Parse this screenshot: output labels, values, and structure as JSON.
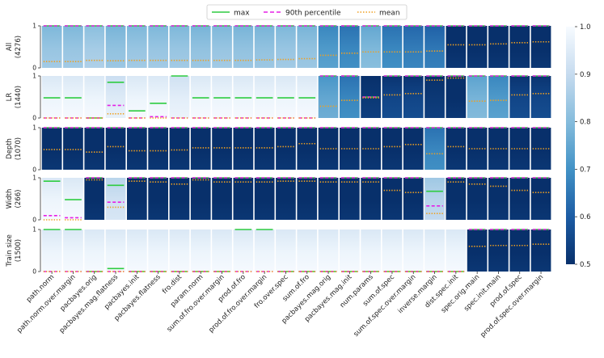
{
  "chart_data": {
    "type": "heatmap",
    "title": "",
    "legend": [
      {
        "key": "max",
        "label": "max",
        "color": "#2ecc40",
        "style": "solid"
      },
      {
        "key": "p90",
        "label": "90th percentile",
        "color": "#e520e5",
        "style": "dashed"
      },
      {
        "key": "mean",
        "label": "mean",
        "color": "#f0a020",
        "style": "dotted"
      }
    ],
    "colorbar": {
      "min": 0.5,
      "max": 1.0,
      "ticks": [
        "0.5",
        "0.6",
        "0.7",
        "0.8",
        "0.9",
        "1.0"
      ]
    },
    "ytick_labels": [
      "0",
      "1"
    ],
    "measures": [
      "path.norm",
      "path.norm.over.margin",
      "pacbayes.orig",
      "pacbayes.mag.flatness",
      "pacbayes.init",
      "pacbayes.flatness",
      "fro.dist",
      "param.norm",
      "sum.of.fro.over.margin",
      "prod.of.fro",
      "prod.of.fro.over.margin",
      "fro.over.spec",
      "sum.of.fro",
      "pacbayes.mag.orig",
      "pacbayes.mag.init",
      "num.params",
      "sum.of.spec",
      "sum.of.spec.over.margin",
      "inverse.margin",
      "dist.spec.init",
      "spec.orig.main",
      "spec.init.main",
      "prod.of.spec",
      "prod.of.spec.over.margin"
    ],
    "rows": [
      {
        "name": "All",
        "count": "(4276)",
        "colors": [
          0.83,
          0.83,
          0.85,
          0.82,
          0.83,
          0.83,
          0.83,
          0.82,
          0.83,
          0.82,
          0.82,
          0.83,
          0.82,
          0.72,
          0.68,
          0.79,
          0.68,
          0.66,
          0.65,
          0.5,
          0.5,
          0.5,
          0.5,
          0.5
        ],
        "means": [
          0.15,
          0.15,
          0.18,
          0.17,
          0.18,
          0.18,
          0.18,
          0.18,
          0.18,
          0.18,
          0.19,
          0.2,
          0.22,
          0.3,
          0.35,
          0.38,
          0.38,
          0.38,
          0.4,
          0.55,
          0.55,
          0.57,
          0.6,
          0.62
        ],
        "p90": [
          1,
          1,
          1,
          1,
          1,
          1,
          1,
          1,
          1,
          1,
          1,
          1,
          1,
          1,
          1,
          1,
          1,
          1,
          1,
          1,
          1,
          1,
          1,
          1
        ],
        "max": [
          1,
          1,
          1,
          1,
          1,
          1,
          1,
          1,
          1,
          1,
          1,
          1,
          1,
          1,
          1,
          1,
          1,
          1,
          1,
          1,
          1,
          1,
          1,
          1
        ]
      },
      {
        "name": "LR",
        "count": "(1440)",
        "colors": [
          0.98,
          0.98,
          0.98,
          0.95,
          0.98,
          0.98,
          0.96,
          0.98,
          0.98,
          0.98,
          0.98,
          0.98,
          0.98,
          0.75,
          0.68,
          0.52,
          0.55,
          0.55,
          0.52,
          0.5,
          0.78,
          0.72,
          0.55,
          0.55
        ],
        "means": [
          0,
          0,
          0,
          0.1,
          0,
          0,
          0,
          0,
          0,
          0,
          0,
          0,
          0,
          0.28,
          0.42,
          0.48,
          0.55,
          0.58,
          0.9,
          0.95,
          0.4,
          0.42,
          0.55,
          0.58
        ],
        "p90": [
          0,
          0,
          0,
          0.3,
          0,
          0.03,
          0,
          0,
          0,
          0,
          0,
          0,
          0,
          1,
          1,
          0.5,
          1,
          1,
          1,
          1,
          1,
          1,
          1,
          1
        ],
        "max": [
          0.48,
          0.48,
          0,
          0.85,
          0.17,
          0.35,
          1,
          0.48,
          0.48,
          0.48,
          0.48,
          0.48,
          0.48,
          1,
          1,
          0.5,
          1,
          1,
          1,
          1,
          1,
          1,
          1,
          1
        ]
      },
      {
        "name": "Depth",
        "count": "(1070)",
        "colors": [
          0.5,
          0.5,
          0.5,
          0.5,
          0.5,
          0.5,
          0.5,
          0.5,
          0.5,
          0.5,
          0.5,
          0.5,
          0.5,
          0.5,
          0.5,
          0.5,
          0.5,
          0.5,
          0.68,
          0.5,
          0.5,
          0.5,
          0.5,
          0.5
        ],
        "means": [
          0.48,
          0.48,
          0.42,
          0.55,
          0.45,
          0.45,
          0.47,
          0.52,
          0.52,
          0.52,
          0.52,
          0.55,
          0.62,
          0.5,
          0.5,
          0.5,
          0.55,
          0.6,
          0.38,
          0.55,
          0.5,
          0.5,
          0.5,
          0.5
        ],
        "p90": [
          1,
          1,
          1,
          1,
          1,
          1,
          1,
          1,
          1,
          1,
          1,
          1,
          1,
          1,
          1,
          1,
          1,
          1,
          1,
          1,
          1,
          1,
          1,
          1
        ],
        "max": [
          1,
          1,
          1,
          1,
          1,
          1,
          1,
          1,
          1,
          1,
          1,
          1,
          1,
          1,
          1,
          1,
          1,
          1,
          1,
          1,
          1,
          1,
          1,
          1
        ]
      },
      {
        "name": "Width",
        "count": "(266)",
        "colors": [
          0.98,
          0.98,
          0.5,
          0.92,
          0.5,
          0.5,
          0.5,
          0.5,
          0.5,
          0.5,
          0.5,
          0.5,
          0.5,
          0.5,
          0.5,
          0.5,
          0.5,
          0.5,
          0.88,
          0.5,
          0.5,
          0.5,
          0.5,
          0.5
        ],
        "means": [
          0,
          0,
          0.95,
          0.3,
          0.92,
          0.9,
          0.85,
          0.95,
          0.9,
          0.9,
          0.9,
          0.92,
          0.92,
          0.9,
          0.9,
          0.9,
          0.7,
          0.65,
          0.15,
          0.9,
          0.85,
          0.8,
          0.7,
          0.65
        ],
        "p90": [
          0.1,
          0.05,
          1,
          0.42,
          1,
          1,
          1,
          1,
          1,
          1,
          1,
          1,
          1,
          1,
          1,
          1,
          1,
          1,
          0.33,
          1,
          1,
          1,
          1,
          1
        ],
        "max": [
          0.92,
          0.48,
          1,
          0.82,
          1,
          1,
          1,
          1,
          1,
          1,
          1,
          1,
          1,
          1,
          1,
          1,
          1,
          1,
          0.68,
          1,
          1,
          1,
          1,
          1
        ]
      },
      {
        "name": "Train size",
        "count": "(1500)",
        "colors": [
          0.98,
          0.98,
          0.98,
          0.98,
          0.98,
          0.98,
          0.98,
          0.98,
          0.98,
          0.98,
          0.98,
          0.98,
          0.98,
          0.98,
          0.98,
          0.98,
          0.98,
          0.98,
          0.98,
          0.98,
          0.5,
          0.5,
          0.5,
          0.5
        ],
        "means": [
          0,
          0,
          0,
          0,
          0,
          0,
          0,
          0,
          0,
          0,
          0,
          0,
          0,
          0,
          0,
          0,
          0,
          0,
          0,
          0,
          0.6,
          0.62,
          0.62,
          0.65
        ],
        "p90": [
          0,
          0,
          0,
          0,
          0,
          0,
          0,
          0,
          0,
          0,
          0,
          0,
          0,
          0,
          0,
          0,
          0,
          0,
          0,
          0,
          1,
          1,
          1,
          1
        ],
        "max": [
          1,
          1,
          0,
          0.07,
          0,
          0,
          0,
          0,
          0,
          1,
          1,
          0,
          0,
          0,
          0,
          0,
          0,
          0,
          0,
          0,
          1,
          1,
          1,
          1
        ]
      }
    ]
  }
}
